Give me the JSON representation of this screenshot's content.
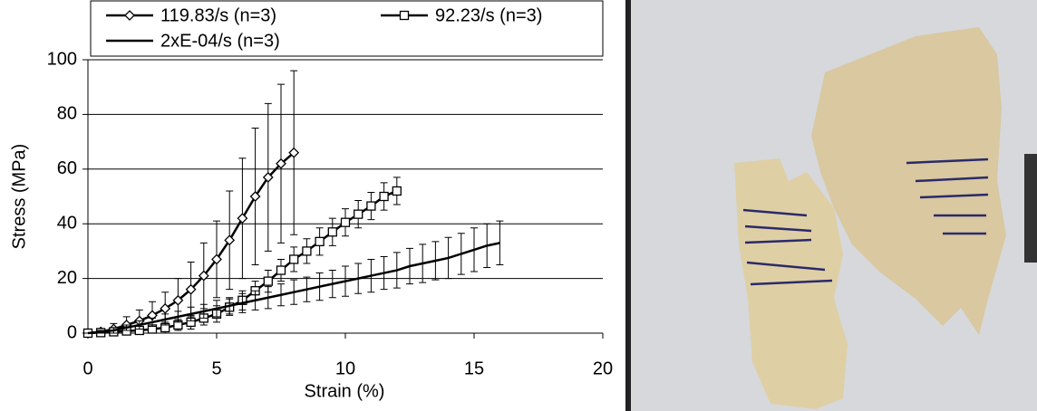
{
  "chart_data": {
    "type": "line",
    "xlabel": "Strain (%)",
    "ylabel": "Stress (MPa)",
    "xlim": [
      0,
      20
    ],
    "ylim": [
      0,
      100
    ],
    "xticks": [
      0,
      5,
      10,
      15,
      20
    ],
    "yticks": [
      0,
      20,
      40,
      60,
      80,
      100
    ],
    "grid": true,
    "legend": "top",
    "series": [
      {
        "name": "119.83/s (n=3)",
        "color": "#000000",
        "marker": "diamond",
        "x": [
          0,
          0.5,
          1,
          1.5,
          2,
          2.5,
          3,
          3.5,
          4,
          4.5,
          5,
          5.5,
          6,
          6.5,
          7,
          7.5,
          8
        ],
        "values": [
          0,
          0.5,
          1.5,
          3,
          4.5,
          6.5,
          9,
          12,
          16,
          21,
          27,
          34,
          42,
          50,
          57,
          62,
          66
        ],
        "errors": [
          0,
          1,
          2,
          3,
          4,
          5,
          6,
          8,
          10,
          12,
          14,
          18,
          22,
          25,
          27,
          29,
          30
        ]
      },
      {
        "name": "92.23/s (n=3)",
        "color": "#000000",
        "marker": "square",
        "x": [
          0,
          0.5,
          1,
          1.5,
          2,
          2.5,
          3,
          3.5,
          4,
          4.5,
          5,
          5.5,
          6,
          6.5,
          7,
          7.5,
          8,
          8.5,
          9,
          9.5,
          10,
          10.5,
          11,
          11.5,
          12
        ],
        "values": [
          0,
          0.2,
          0.5,
          0.8,
          1,
          1.5,
          2,
          3,
          4,
          5.5,
          7,
          9.5,
          12,
          15.5,
          19,
          23,
          27,
          30,
          33.5,
          37,
          40.5,
          43.5,
          46.5,
          50,
          52
        ],
        "errors": [
          0,
          0.5,
          1,
          1,
          1.5,
          1.5,
          2,
          2,
          2.5,
          2.5,
          3,
          3,
          3.5,
          3.5,
          4,
          4,
          4.5,
          4.5,
          5,
          5,
          5,
          5,
          5,
          5,
          5
        ]
      },
      {
        "name": "2xE-04/s (n=3)",
        "color": "#000000",
        "marker": "none",
        "x": [
          0,
          0.5,
          1,
          1.5,
          2,
          2.5,
          3,
          3.5,
          4,
          4.5,
          5,
          5.5,
          6,
          6.5,
          7,
          7.5,
          8,
          8.5,
          9,
          9.5,
          10,
          10.5,
          11,
          11.5,
          12,
          12.5,
          13,
          13.5,
          14,
          14.5,
          15,
          15.5,
          16
        ],
        "values": [
          0,
          0.5,
          1,
          2,
          3,
          4,
          5,
          6,
          7,
          8,
          9,
          10,
          11,
          12,
          13,
          14,
          15,
          16,
          17,
          18,
          19,
          20,
          21,
          22,
          23,
          24.5,
          25.5,
          26.5,
          27.5,
          29,
          30.5,
          32,
          33
        ],
        "errors": [
          0,
          0.5,
          1,
          1,
          1.5,
          1.5,
          2,
          2,
          2.5,
          2.5,
          3,
          3,
          3.5,
          3.5,
          4,
          4,
          4.5,
          4.5,
          5,
          5,
          5.5,
          5.5,
          6,
          6,
          6.5,
          6.5,
          7,
          7,
          7.5,
          7.5,
          8,
          8,
          8
        ]
      }
    ]
  }
}
